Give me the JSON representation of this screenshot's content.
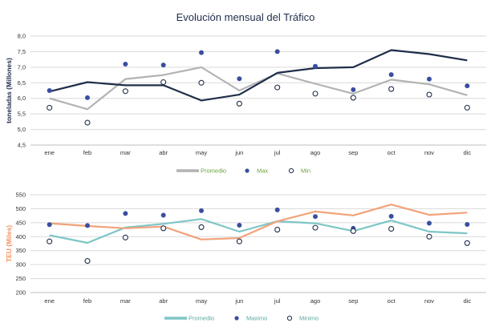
{
  "chart_data": [
    {
      "type": "line",
      "title": "Evolución mensual del Tráfico",
      "ylabel": "toneladas (Millones)",
      "ylim": [
        4.5,
        8.0
      ],
      "yticks": [
        "4,5",
        "5,0",
        "5,5",
        "6,0",
        "6,5",
        "7,0",
        "7,5",
        "8,0"
      ],
      "categories": [
        "ene",
        "feb",
        "mar",
        "abr",
        "may",
        "jun",
        "jul",
        "ago",
        "sep",
        "oct",
        "nov",
        "dic"
      ],
      "legend": "bottom",
      "series": [
        {
          "name": "Promedio",
          "style": "line",
          "color": "#b3b3b3",
          "values": [
            6.0,
            5.65,
            6.62,
            6.75,
            7.0,
            6.25,
            6.8,
            6.47,
            6.15,
            6.6,
            6.45,
            6.1
          ]
        },
        {
          "name": "Max",
          "style": "dot",
          "color": "#3a4ea0",
          "values": [
            6.25,
            6.02,
            7.1,
            7.07,
            7.47,
            6.63,
            7.5,
            7.03,
            6.28,
            6.76,
            6.62,
            6.4
          ]
        },
        {
          "name": "Min",
          "style": "circle",
          "color": "#1f2d4a",
          "values": [
            5.7,
            5.22,
            6.23,
            6.52,
            6.5,
            5.83,
            6.35,
            6.15,
            6.02,
            6.3,
            6.12,
            5.7
          ]
        },
        {
          "name": "",
          "style": "line",
          "color": "#1f2d4a",
          "values": [
            6.22,
            6.52,
            6.42,
            6.42,
            5.93,
            6.12,
            6.82,
            6.97,
            7.0,
            7.55,
            7.42,
            7.22
          ]
        }
      ]
    },
    {
      "type": "line",
      "title": "",
      "ylabel": "TEU (Miles)",
      "ylim": [
        200,
        550
      ],
      "yticks": [
        "200",
        "250",
        "300",
        "350",
        "400",
        "450",
        "500",
        "550"
      ],
      "categories": [
        "ene",
        "feb",
        "mar",
        "abr",
        "may",
        "jun",
        "jul",
        "ago",
        "sep",
        "oct",
        "nov",
        "dic"
      ],
      "legend": "bottom",
      "series": [
        {
          "name": "Promedio",
          "style": "line",
          "color": "#7ec6c6",
          "values": [
            405,
            378,
            433,
            446,
            463,
            418,
            455,
            448,
            420,
            458,
            418,
            412
          ]
        },
        {
          "name": "Maximo",
          "style": "dot",
          "color": "#3a4ea0",
          "values": [
            443,
            440,
            483,
            477,
            493,
            441,
            496,
            472,
            430,
            473,
            448,
            444
          ]
        },
        {
          "name": "Minimo",
          "style": "circle",
          "color": "#1f2d4a",
          "values": [
            383,
            313,
            397,
            430,
            434,
            383,
            425,
            432,
            420,
            428,
            400,
            377
          ]
        },
        {
          "name": "",
          "style": "line",
          "color": "#f2a27a",
          "values": [
            448,
            438,
            430,
            436,
            390,
            395,
            455,
            490,
            476,
            515,
            478,
            486
          ]
        }
      ]
    }
  ]
}
